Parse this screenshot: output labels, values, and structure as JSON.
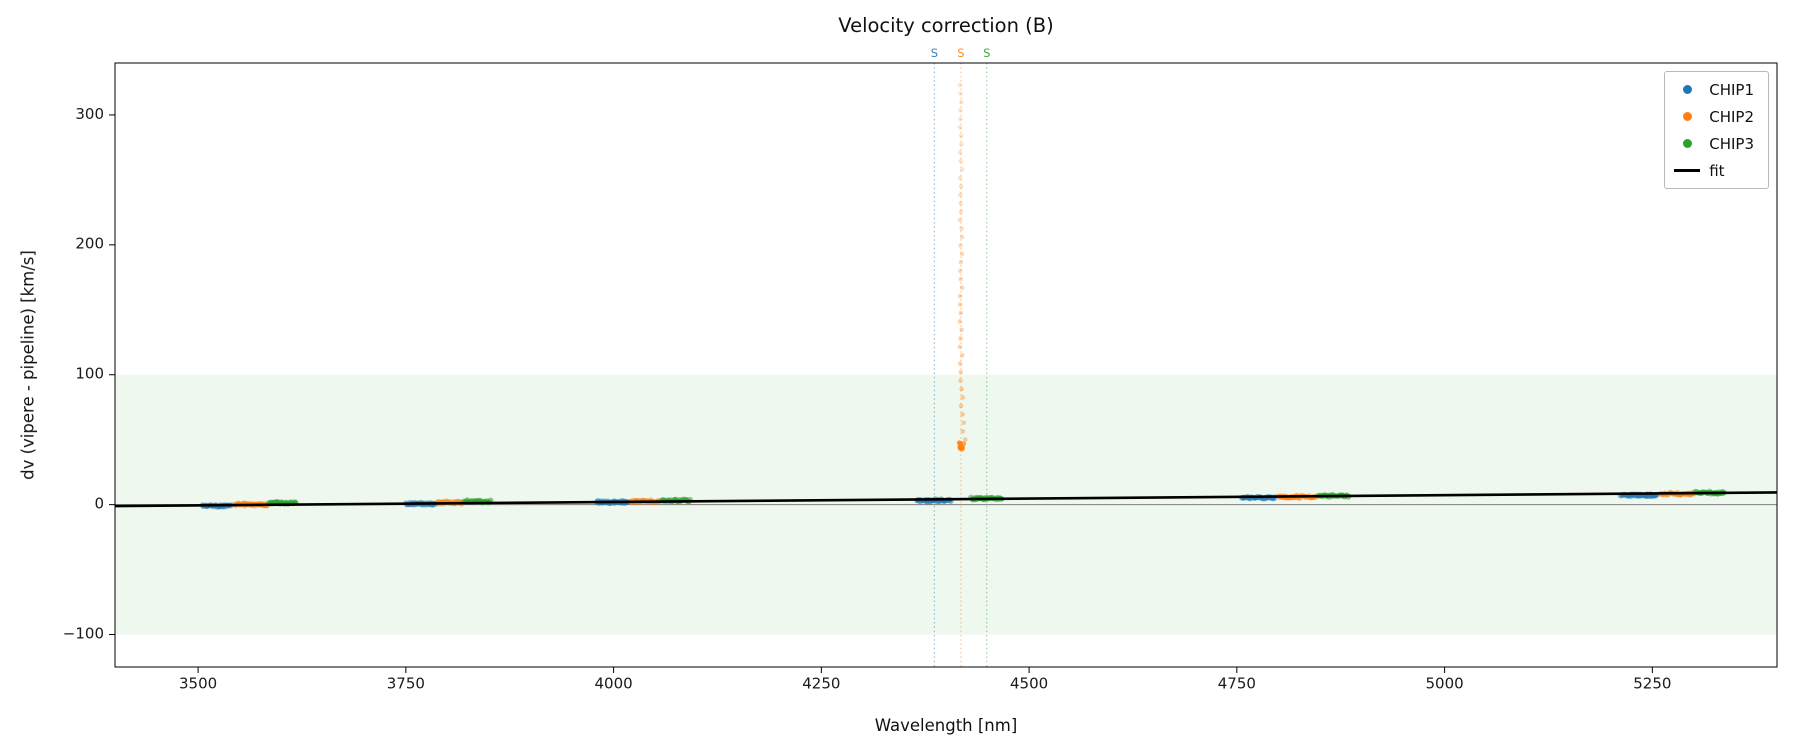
{
  "chart_data": {
    "type": "scatter",
    "title": "Velocity correction (B)",
    "xlabel": "Wavelength [nm]",
    "ylabel": "dv (vipere - pipeline) [km/s]",
    "xlim": [
      3400,
      5400
    ],
    "ylim": [
      -125,
      340
    ],
    "xticks": [
      3500,
      3750,
      4000,
      4250,
      4500,
      4750,
      5000,
      5250
    ],
    "yticks": [
      -100,
      0,
      100,
      200,
      300
    ],
    "grid": false,
    "legend_position": "upper right",
    "shaded_band": {
      "ymin": -100,
      "ymax": 100,
      "color": "#2ca02c",
      "alpha": 0.08
    },
    "zero_line": {
      "y": 0,
      "color": "#7f7f7f"
    },
    "setting_lines": [
      {
        "x": 4386,
        "color": "#1f77b4",
        "label": "S"
      },
      {
        "x": 4418,
        "color": "#ff7f0e",
        "label": "S"
      },
      {
        "x": 4449,
        "color": "#2ca02c",
        "label": "S"
      }
    ],
    "series": [
      {
        "name": "CHIP1",
        "color": "#1f77b4",
        "segments": [
          {
            "x_start": 3505,
            "x_end": 3540,
            "y": -0.7
          },
          {
            "x_start": 3750,
            "x_end": 3786,
            "y": 0.7
          },
          {
            "x_start": 3980,
            "x_end": 4018,
            "y": 2.0
          },
          {
            "x_start": 4365,
            "x_end": 4406,
            "y": 3.2
          },
          {
            "x_start": 4756,
            "x_end": 4796,
            "y": 5.3
          },
          {
            "x_start": 5212,
            "x_end": 5256,
            "y": 7.3
          }
        ]
      },
      {
        "name": "CHIP2",
        "color": "#ff7f0e",
        "segments": [
          {
            "x_start": 3544,
            "x_end": 3583,
            "y": 0.0
          },
          {
            "x_start": 3788,
            "x_end": 3818,
            "y": 1.6
          },
          {
            "x_start": 4020,
            "x_end": 4056,
            "y": 2.6
          },
          {
            "x_start": 4800,
            "x_end": 4846,
            "y": 6.0
          },
          {
            "x_start": 5260,
            "x_end": 5300,
            "y": 8.3
          }
        ],
        "outliers": {
          "x": 4418,
          "y_min": 42,
          "y_max": 325
        }
      },
      {
        "name": "CHIP3",
        "color": "#2ca02c",
        "segments": [
          {
            "x_start": 3585,
            "x_end": 3618,
            "y": 1.3
          },
          {
            "x_start": 3820,
            "x_end": 3852,
            "y": 2.5
          },
          {
            "x_start": 4058,
            "x_end": 4092,
            "y": 3.2
          },
          {
            "x_start": 4430,
            "x_end": 4468,
            "y": 4.8
          },
          {
            "x_start": 4848,
            "x_end": 4885,
            "y": 6.8
          },
          {
            "x_start": 5302,
            "x_end": 5336,
            "y": 9.2
          }
        ]
      }
    ],
    "fit_line": {
      "label": "fit",
      "color": "#000000",
      "x": [
        3400,
        5400
      ],
      "y": [
        -1.1,
        9.4
      ]
    },
    "legend": [
      {
        "label": "CHIP1",
        "color": "#1f77b4",
        "marker": "dot"
      },
      {
        "label": "CHIP2",
        "color": "#ff7f0e",
        "marker": "dot"
      },
      {
        "label": "CHIP3",
        "color": "#2ca02c",
        "marker": "dot"
      },
      {
        "label": "fit",
        "color": "#000000",
        "marker": "line"
      }
    ]
  }
}
